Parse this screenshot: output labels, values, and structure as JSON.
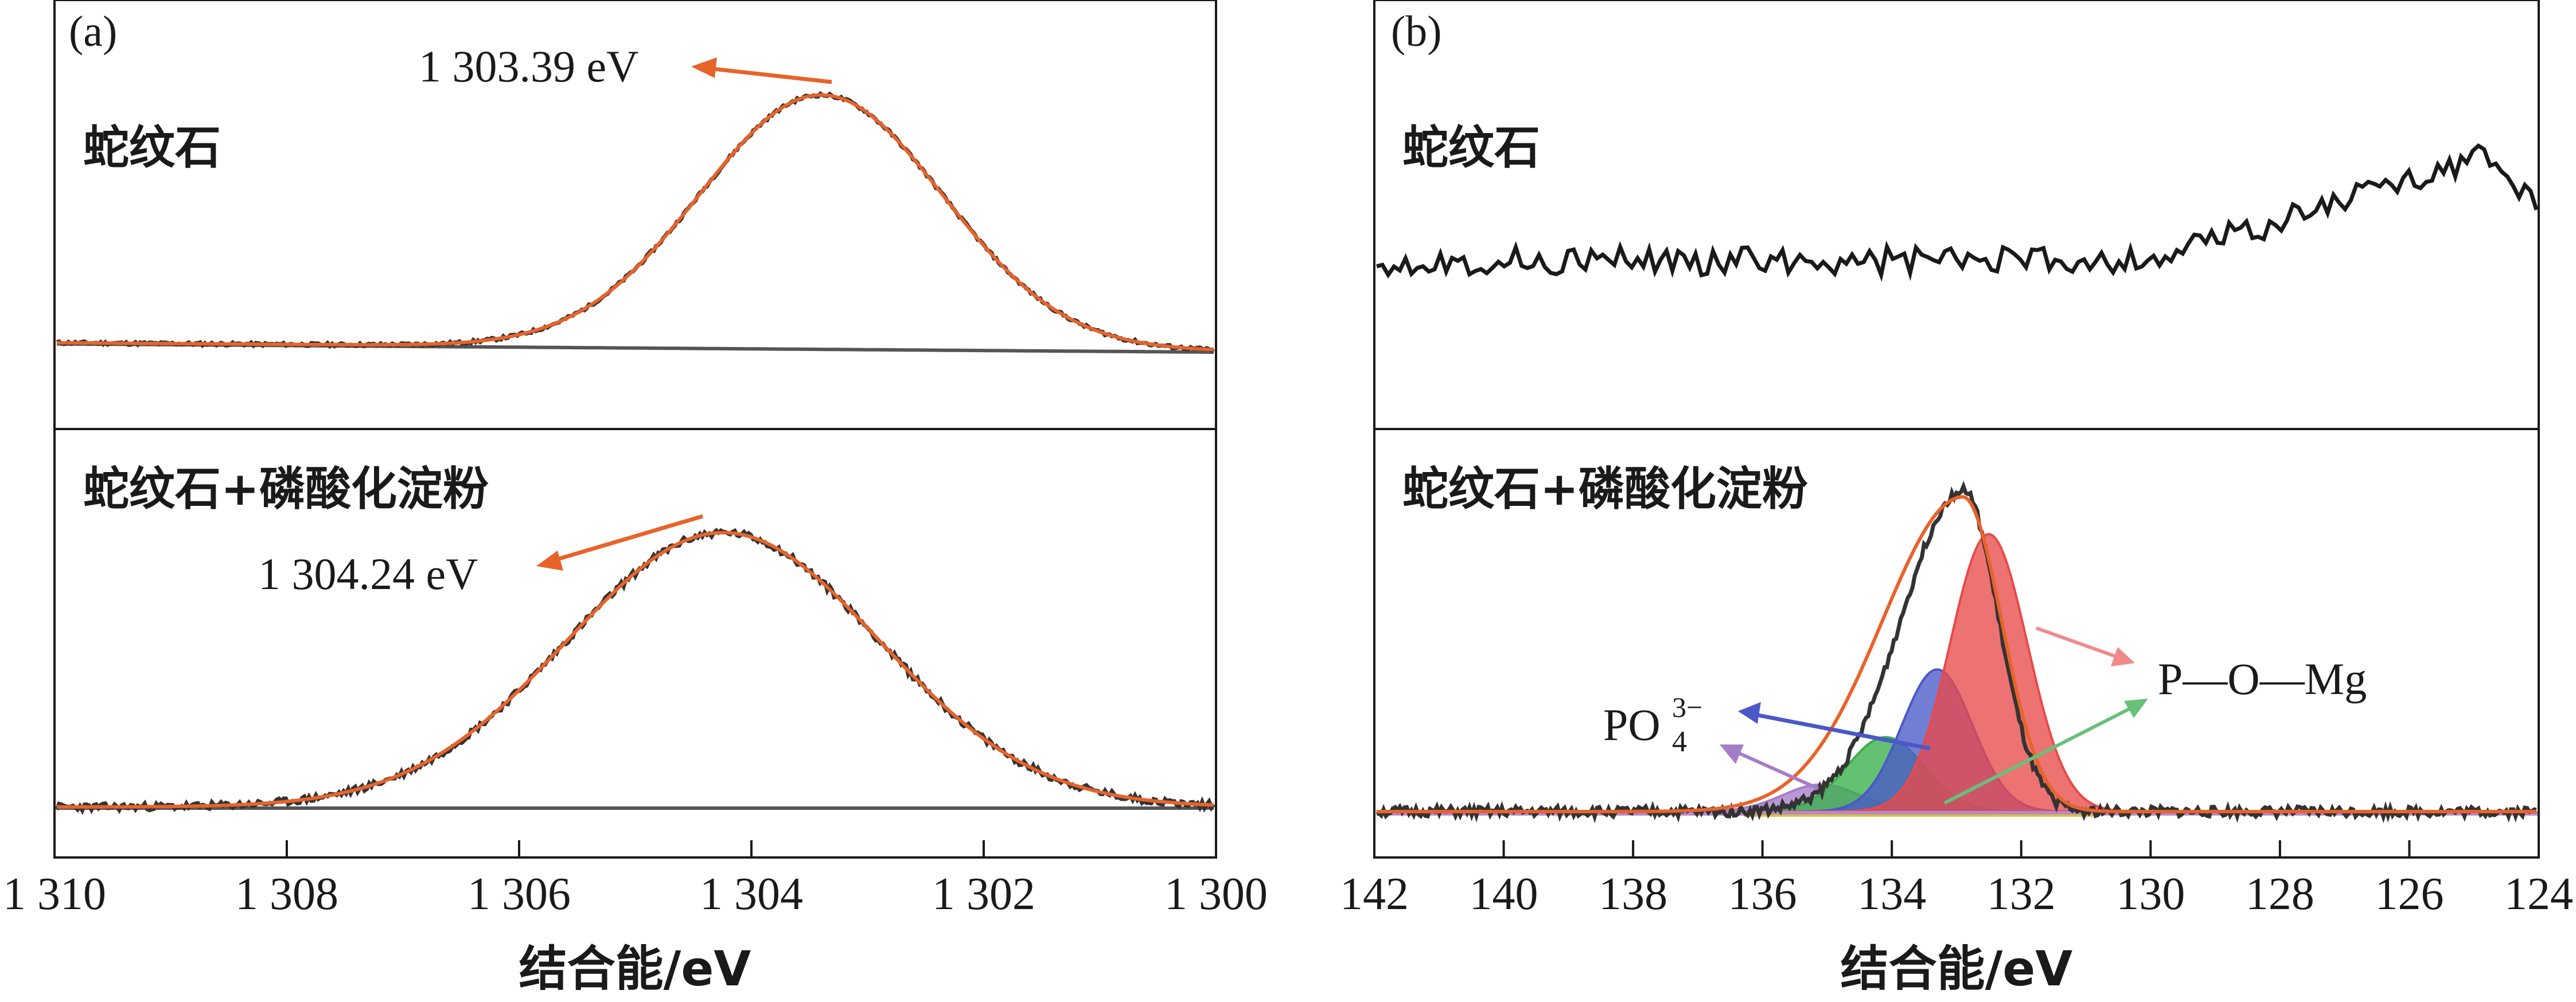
{
  "figure": {
    "line_color": "#1a1a1a",
    "fit_color": "#e8632a",
    "panels": [
      {
        "label": "(a)",
        "type": "line",
        "xaxis": {
          "label": "结合能/eV",
          "range": [
            1310,
            1300
          ],
          "ticks": [
            1310,
            1308,
            1306,
            1304,
            1302,
            1300
          ],
          "tick_labels": [
            "1 310",
            "1 308",
            "1 306",
            "1 304",
            "1 302",
            "1 300"
          ]
        },
        "subplots": [
          {
            "sample": "蛇纹石",
            "peak_label": "1 303.39 eV",
            "peak_x": 1303.39,
            "peak_height": 0.92,
            "width_ev": 1.05,
            "baseline_start": 0.03,
            "baseline_end": 0.0,
            "noise": 0.006,
            "seed": 11
          },
          {
            "sample": "蛇纹石+磷酸化淀粉",
            "peak_label": "1 304.24 eV",
            "peak_x": 1304.24,
            "peak_height": 0.92,
            "width_ev": 1.35,
            "baseline_start": 0.0,
            "baseline_end": 0.0,
            "noise": 0.012,
            "seed": 23
          }
        ]
      },
      {
        "label": "(b)",
        "type": "line",
        "xaxis": {
          "label": "结合能/eV",
          "range": [
            142,
            124
          ],
          "ticks": [
            142,
            140,
            138,
            136,
            134,
            132,
            130,
            128,
            126,
            124
          ],
          "tick_labels": [
            "142",
            "140",
            "138",
            "136",
            "134",
            "132",
            "130",
            "128",
            "126",
            "124"
          ]
        },
        "subplots": [
          {
            "sample": "蛇纹石",
            "seed": 37,
            "noisy_trace": true
          },
          {
            "sample": "蛇纹石+磷酸化淀粉",
            "seed": 51,
            "components": [
              {
                "name": "P—O—Mg",
                "center": 132.5,
                "height": 0.82,
                "sigma": 0.6,
                "color": "#e84a4a"
              },
              {
                "name": "PO4(3−)",
                "center": 133.3,
                "height": 0.42,
                "sigma": 0.55,
                "color": "#4a58c8"
              },
              {
                "name": "green",
                "center": 134.1,
                "height": 0.22,
                "sigma": 0.6,
                "color": "#38b04a"
              },
              {
                "name": "purple",
                "center": 135.1,
                "height": 0.08,
                "sigma": 0.6,
                "color": "#a57cc8"
              }
            ],
            "label_pomg": "P—O—Mg",
            "label_po4": "PO",
            "label_po4_sub": "4",
            "label_po4_sup": "3−"
          }
        ]
      }
    ]
  }
}
